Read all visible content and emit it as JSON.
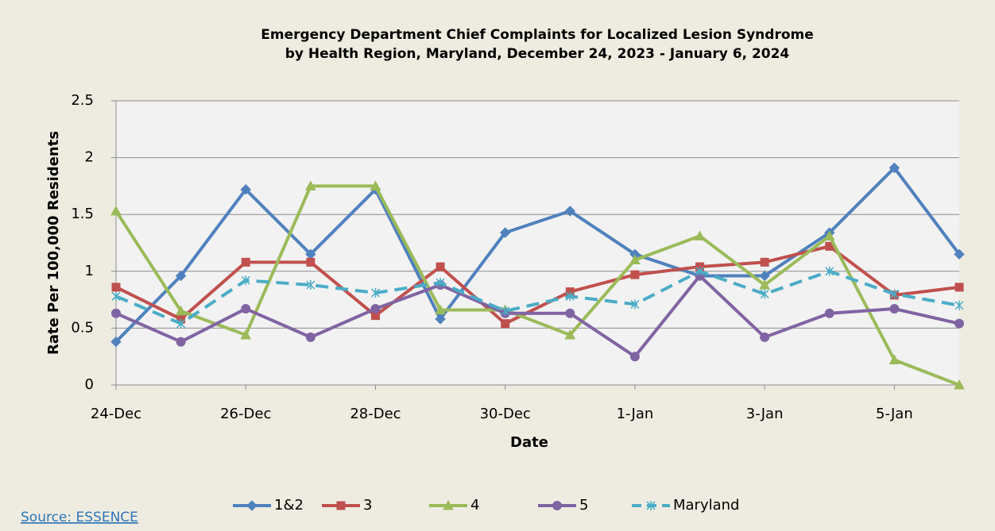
{
  "chart_data": {
    "type": "line",
    "title": "Emergency Department Chief Complaints for Localized Lesion Syndrome",
    "subtitle": "by Health Region, Maryland, December 24, 2023 - January 6, 2024",
    "x_label": "Date",
    "y_label": "Rate Per 100,000 Residents",
    "source": "Source: ESSENCE",
    "categories": [
      "24-Dec",
      null,
      "26-Dec",
      null,
      "28-Dec",
      null,
      "30-Dec",
      null,
      "1-Jan",
      null,
      "3-Jan",
      null,
      "5-Jan",
      null
    ],
    "ylim": [
      0,
      2.5
    ],
    "yticks": [
      0,
      0.5,
      1,
      1.5,
      2,
      2.5
    ],
    "grid": true,
    "legend": "bottom",
    "series": [
      {
        "name": "1&2",
        "color": "#4f81bd",
        "marker": "diamond",
        "dash": false,
        "values": [
          0.38,
          0.96,
          1.72,
          1.15,
          1.72,
          0.58,
          1.34,
          1.53,
          1.15,
          0.96,
          0.96,
          1.34,
          1.91,
          1.15
        ]
      },
      {
        "name": "3",
        "color": "#c0504d",
        "marker": "square",
        "dash": false,
        "values": [
          0.86,
          0.58,
          1.08,
          1.08,
          0.61,
          1.04,
          0.54,
          0.82,
          0.97,
          1.04,
          1.08,
          1.22,
          0.79,
          0.86
        ]
      },
      {
        "name": "4",
        "color": "#9bbb59",
        "marker": "triangle",
        "dash": false,
        "values": [
          1.53,
          0.65,
          0.44,
          1.75,
          1.75,
          0.66,
          0.66,
          0.44,
          1.1,
          1.31,
          0.88,
          1.31,
          0.22,
          0
        ]
      },
      {
        "name": "5",
        "color": "#8064a2",
        "marker": "circle",
        "dash": false,
        "values": [
          0.63,
          0.38,
          0.67,
          0.42,
          0.67,
          0.88,
          0.63,
          0.63,
          0.25,
          0.96,
          0.42,
          0.63,
          0.67,
          0.54
        ]
      },
      {
        "name": "Maryland",
        "color": "#4bacc6",
        "marker": "star",
        "dash": true,
        "values": [
          0.78,
          0.54,
          0.92,
          0.88,
          0.81,
          0.9,
          0.65,
          0.78,
          0.71,
          1.0,
          0.8,
          1.0,
          0.8,
          0.7
        ]
      }
    ]
  }
}
